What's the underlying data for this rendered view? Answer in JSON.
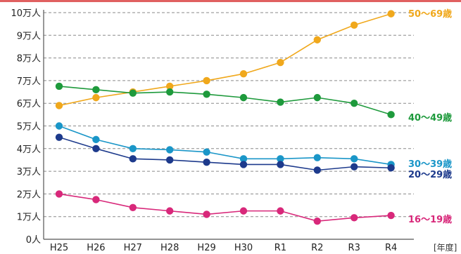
{
  "chart_data": {
    "type": "line",
    "categories": [
      "H25",
      "H26",
      "H27",
      "H28",
      "H29",
      "H30",
      "R1",
      "R2",
      "R3",
      "R4"
    ],
    "x_unit": "[年度]",
    "y_ticks": [
      "0人",
      "1万人",
      "2万人",
      "3万人",
      "4万人",
      "5万人",
      "6万人",
      "7万人",
      "8万人",
      "9万人",
      "10万人"
    ],
    "ylim": [
      0,
      100000
    ],
    "grid": true,
    "legend": "right-inline",
    "series": [
      {
        "name": "50～69歳",
        "color": "#f0a81c",
        "values": [
          59000,
          62500,
          65000,
          67500,
          70000,
          73000,
          78000,
          88000,
          94500,
          99500
        ]
      },
      {
        "name": "40～49歳",
        "color": "#1e9a3c",
        "values": [
          67500,
          66000,
          64500,
          65000,
          64000,
          62500,
          60500,
          62500,
          60000,
          55000
        ]
      },
      {
        "name": "30～39歳",
        "color": "#1a96c8",
        "values": [
          50000,
          44000,
          40000,
          39500,
          38500,
          35500,
          35500,
          36000,
          35500,
          33000
        ]
      },
      {
        "name": "20～29歳",
        "color": "#1d3a8c",
        "values": [
          45000,
          40000,
          35500,
          35000,
          34000,
          33000,
          33000,
          30500,
          32000,
          31500
        ]
      },
      {
        "name": "16～19歳",
        "color": "#d8287a",
        "values": [
          20000,
          17500,
          14000,
          12500,
          11000,
          12500,
          12500,
          8000,
          9500,
          10500
        ]
      }
    ]
  }
}
